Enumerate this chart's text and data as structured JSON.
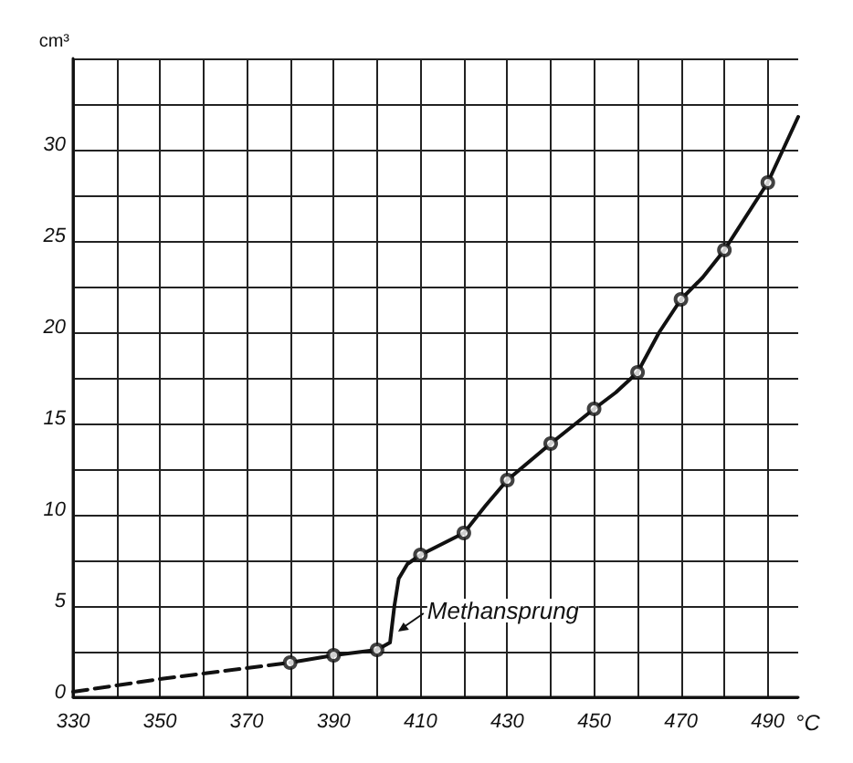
{
  "chart_data": {
    "type": "line",
    "xlabel": "°C",
    "ylabel": "cm³",
    "xlim": [
      330,
      497
    ],
    "ylim": [
      0,
      35
    ],
    "xticks": [
      330,
      {
        "value": 340,
        "label": null
      },
      350,
      {
        "value": 360,
        "label": null
      },
      370,
      {
        "value": 380,
        "label": null
      },
      390,
      {
        "value": 400,
        "label": null
      },
      410,
      {
        "value": 420,
        "label": null
      },
      430,
      {
        "value": 440,
        "label": null
      },
      450,
      {
        "value": 460,
        "label": null
      },
      470,
      {
        "value": 480,
        "label": null
      },
      490
    ],
    "yticks": [
      0,
      {
        "value": 2.5,
        "label": null
      },
      5,
      {
        "value": 7.5,
        "label": null
      },
      10,
      {
        "value": 12.5,
        "label": null
      },
      15,
      {
        "value": 17.5,
        "label": null
      },
      20,
      {
        "value": 22.5,
        "label": null
      },
      25,
      {
        "value": 27.5,
        "label": null
      },
      30,
      {
        "value": 32.5,
        "label": null
      },
      {
        "value": 35,
        "label": null
      }
    ],
    "grid": true,
    "series": [
      {
        "type": "line",
        "color": "#111111",
        "line_style": "dashed",
        "marker": "none",
        "x": [
          330,
          350,
          370,
          380
        ],
        "values": [
          0.3,
          1.0,
          1.6,
          1.9
        ]
      },
      {
        "type": "line",
        "color": "#111111",
        "line_style": "solid",
        "marker": "none",
        "x": [
          380,
          390,
          400,
          403,
          404,
          405,
          407,
          410,
          420,
          425,
          430,
          440,
          450,
          455,
          460,
          465,
          470,
          475,
          480,
          490,
          497
        ],
        "values": [
          1.9,
          2.3,
          2.6,
          3.0,
          5.0,
          6.5,
          7.3,
          7.8,
          9.0,
          10.5,
          11.9,
          13.9,
          15.8,
          16.7,
          17.8,
          20.0,
          21.8,
          23.0,
          24.5,
          28.2,
          31.8
        ]
      },
      {
        "type": "scatter",
        "color": "#111111",
        "marker": "circle",
        "x": [
          380,
          390,
          400,
          410,
          420,
          430,
          440,
          450,
          460,
          470,
          480,
          490
        ],
        "values": [
          1.9,
          2.3,
          2.6,
          7.8,
          9.0,
          11.9,
          13.9,
          15.8,
          17.8,
          21.8,
          24.5,
          28.2
        ]
      }
    ],
    "annotations": [
      {
        "text": "Methansprung",
        "x": 404,
        "y": 4.0
      }
    ]
  }
}
